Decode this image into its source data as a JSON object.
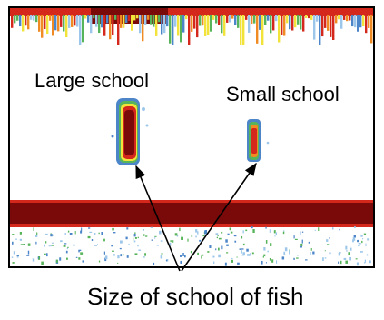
{
  "labels": {
    "large_school": "Large school",
    "small_school": "Small school",
    "caption": "Size of school of fish"
  },
  "colors": {
    "frame": "#000000",
    "dark_echo": "#7a0a0a",
    "red_echo": "#d4281c",
    "orange_echo": "#f08a22",
    "yellow_echo": "#f2e33a",
    "green_echo": "#58b45a",
    "blue_echo": "#4d86c8",
    "light_blue_echo": "#9cc6ea",
    "background": "#ffffff"
  }
}
